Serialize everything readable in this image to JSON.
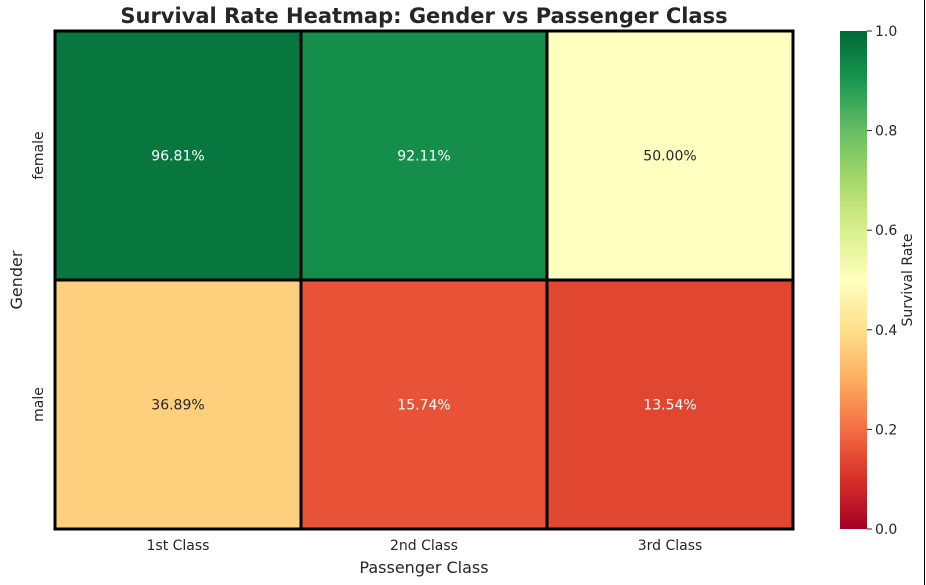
{
  "chart_data": {
    "type": "heatmap",
    "title": "Survival Rate Heatmap: Gender vs Passenger Class",
    "xlabel": "Passenger Class",
    "ylabel": "Gender",
    "x_categories": [
      "1st Class",
      "2nd Class",
      "3rd Class"
    ],
    "y_categories": [
      "female",
      "male"
    ],
    "values": [
      [
        0.9681,
        0.9211,
        0.5
      ],
      [
        0.3689,
        0.1574,
        0.1354
      ]
    ],
    "cell_labels": [
      [
        "96.81%",
        "92.11%",
        "50.00%"
      ],
      [
        "36.89%",
        "15.74%",
        "13.54%"
      ]
    ],
    "colormap": "RdYlGn",
    "vmin": 0,
    "vmax": 1,
    "colorbar": {
      "label": "Survival Rate",
      "ticks": [
        0.0,
        0.2,
        0.4,
        0.6,
        0.8,
        1.0
      ],
      "tick_labels": [
        "0.0",
        "0.2",
        "0.4",
        "0.6",
        "0.8",
        "1.0"
      ]
    },
    "cell_border_color": "#000000"
  }
}
